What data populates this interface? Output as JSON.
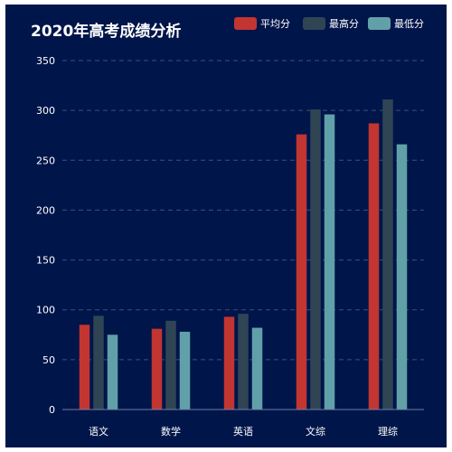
{
  "chart_data": {
    "type": "bar",
    "title": "2020年高考成绩分析",
    "categories": [
      "语文",
      "数学",
      "英语",
      "文综",
      "理综"
    ],
    "series": [
      {
        "name": "平均分",
        "values": [
          85,
          81,
          93,
          276,
          287
        ]
      },
      {
        "name": "最高分",
        "values": [
          94,
          89,
          96,
          301,
          311
        ]
      },
      {
        "name": "最低分",
        "values": [
          75,
          78,
          82,
          296,
          266
        ]
      }
    ],
    "colors": [
      "#c23531",
      "#2f4554",
      "#61a0a8"
    ],
    "ylim": [
      0,
      350
    ],
    "yticks": [
      0,
      50,
      100,
      150,
      200,
      250,
      300,
      350
    ],
    "grid": true,
    "legend_position": "top-right",
    "background": "#00154a"
  }
}
